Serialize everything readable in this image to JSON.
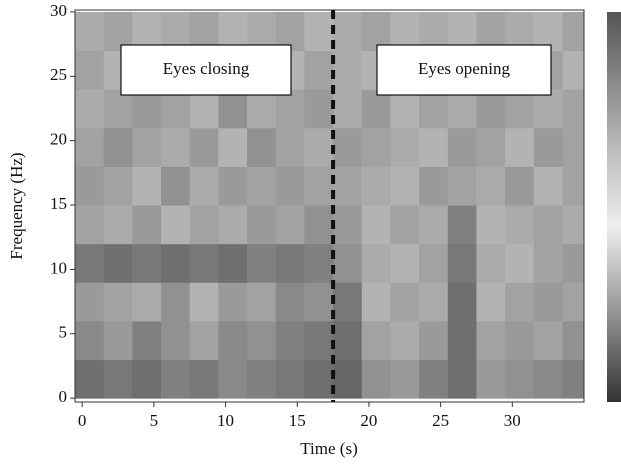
{
  "chart_data": {
    "type": "heatmap",
    "xlabel": "Time (s)",
    "ylabel": "Frequency (Hz)",
    "xlim": [
      -0.5,
      35
    ],
    "ylim": [
      -0.3,
      30.15
    ],
    "xticks": [
      0,
      5,
      10,
      15,
      20,
      25,
      30
    ],
    "yticks": [
      0,
      5,
      10,
      15,
      20,
      25,
      30
    ],
    "x": [
      0.5,
      2.5,
      4.5,
      6.5,
      8.5,
      10.5,
      12.5,
      14.5,
      16.5,
      18.5,
      20.5,
      22.5,
      24.5,
      26.5,
      28.5,
      30.5,
      32.5,
      34.5
    ],
    "y": [
      1.5,
      4.5,
      7.5,
      10.5,
      13.5,
      16.5,
      19.5,
      22.5,
      25.5,
      28.5
    ],
    "z": [
      [
        0.3,
        0.35,
        0.3,
        0.4,
        0.35,
        0.45,
        0.4,
        0.35,
        0.3,
        0.25,
        0.5,
        0.55,
        0.4,
        0.3,
        0.55,
        0.5,
        0.45,
        0.4
      ],
      [
        0.45,
        0.55,
        0.4,
        0.5,
        0.6,
        0.45,
        0.5,
        0.4,
        0.35,
        0.3,
        0.6,
        0.65,
        0.55,
        0.3,
        0.6,
        0.55,
        0.6,
        0.5
      ],
      [
        0.55,
        0.6,
        0.65,
        0.5,
        0.7,
        0.55,
        0.6,
        0.45,
        0.5,
        0.35,
        0.7,
        0.6,
        0.65,
        0.3,
        0.7,
        0.6,
        0.55,
        0.6
      ],
      [
        0.35,
        0.3,
        0.35,
        0.3,
        0.35,
        0.3,
        0.4,
        0.35,
        0.4,
        0.5,
        0.65,
        0.7,
        0.6,
        0.35,
        0.65,
        0.7,
        0.6,
        0.55
      ],
      [
        0.6,
        0.65,
        0.55,
        0.7,
        0.6,
        0.65,
        0.55,
        0.6,
        0.5,
        0.55,
        0.7,
        0.6,
        0.65,
        0.4,
        0.7,
        0.65,
        0.6,
        0.65
      ],
      [
        0.55,
        0.6,
        0.7,
        0.5,
        0.65,
        0.55,
        0.6,
        0.55,
        0.6,
        0.6,
        0.65,
        0.7,
        0.55,
        0.6,
        0.65,
        0.55,
        0.7,
        0.6
      ],
      [
        0.6,
        0.5,
        0.6,
        0.65,
        0.55,
        0.7,
        0.5,
        0.6,
        0.65,
        0.55,
        0.6,
        0.65,
        0.7,
        0.55,
        0.6,
        0.7,
        0.55,
        0.6
      ],
      [
        0.65,
        0.6,
        0.55,
        0.6,
        0.7,
        0.5,
        0.65,
        0.6,
        0.55,
        0.65,
        0.55,
        0.7,
        0.6,
        0.65,
        0.55,
        0.6,
        0.65,
        0.6
      ],
      [
        0.6,
        0.7,
        0.65,
        0.55,
        0.6,
        0.65,
        0.6,
        0.7,
        0.6,
        0.65,
        0.7,
        0.6,
        0.65,
        0.6,
        0.7,
        0.65,
        0.6,
        0.7
      ],
      [
        0.65,
        0.6,
        0.7,
        0.65,
        0.6,
        0.7,
        0.65,
        0.6,
        0.7,
        0.65,
        0.6,
        0.7,
        0.65,
        0.7,
        0.6,
        0.65,
        0.7,
        0.6
      ]
    ],
    "vline": 17.5,
    "annotations": [
      {
        "text": "Eyes closing"
      },
      {
        "text": "Eyes opening"
      }
    ]
  }
}
